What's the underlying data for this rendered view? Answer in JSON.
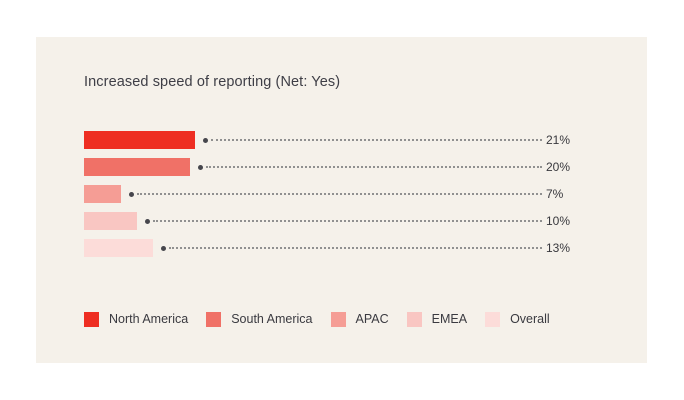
{
  "page": {
    "background": "#ffffff",
    "card_background": "#f5f1ea"
  },
  "chart_data": {
    "type": "bar",
    "orientation": "horizontal",
    "title": "Increased speed of reporting (Net: Yes)",
    "categories": [
      "North America",
      "South America",
      "APAC",
      "EMEA",
      "Overall"
    ],
    "values": [
      21,
      20,
      7,
      10,
      13
    ],
    "value_labels": [
      "21%",
      "20%",
      "7%",
      "10%",
      "13%"
    ],
    "unit": "%",
    "colors": [
      "#ee2e22",
      "#f07167",
      "#f59d95",
      "#f9c6c2",
      "#fcdcd9"
    ],
    "grid": false,
    "legend_position": "bottom",
    "leader_dot_color": "#46464c",
    "leader_line_color": "#909090",
    "value_label_color": "#38383d",
    "title_color": "#3e3e46"
  }
}
